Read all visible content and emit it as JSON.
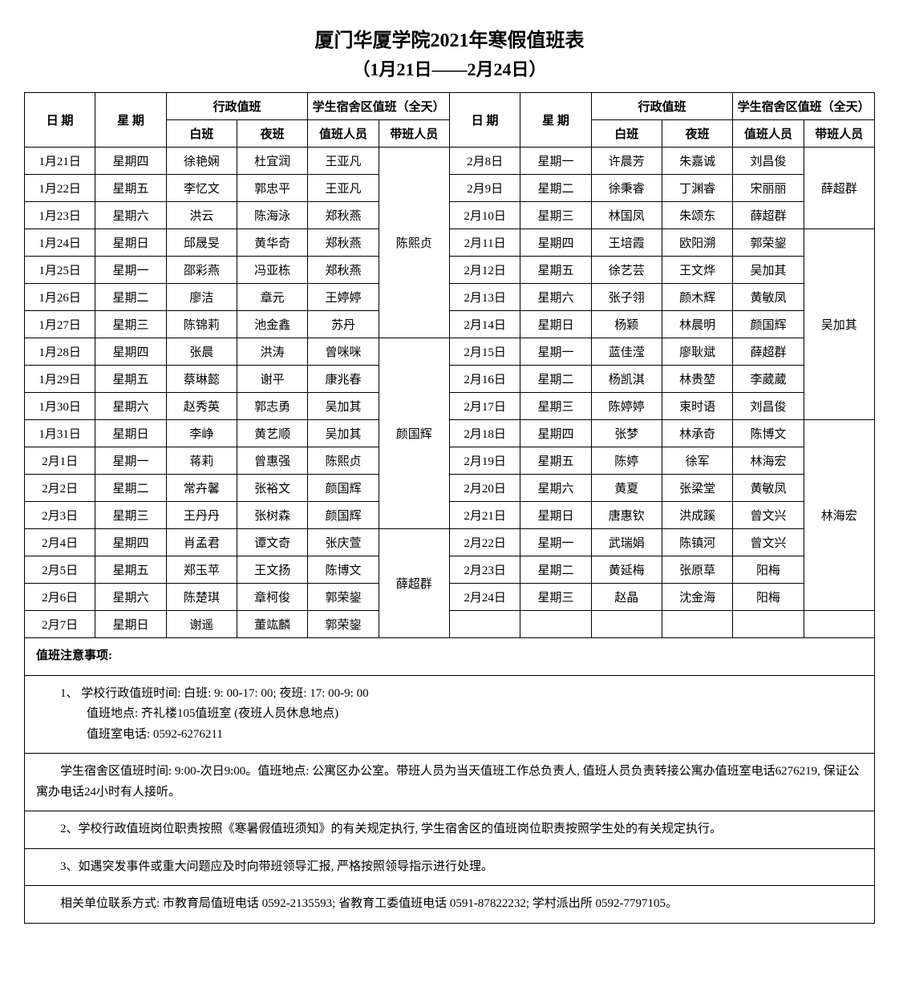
{
  "title": "厦门华厦学院2021年寒假值班表",
  "subtitle": "（1月21日——2月24日）",
  "headers": {
    "date": "日 期",
    "weekday": "星 期",
    "adminDuty": "行政值班",
    "dormDuty": "学生宿舍区值班（全天）",
    "dayShift": "白班",
    "nightShift": "夜班",
    "dutyPerson": "值班人员",
    "leadPerson": "带班人员"
  },
  "left": [
    {
      "date": "1月21日",
      "wd": "星期四",
      "d": "徐艳娴",
      "n": "杜宜润",
      "p": "王亚凡"
    },
    {
      "date": "1月22日",
      "wd": "星期五",
      "d": "李忆文",
      "n": "郭忠平",
      "p": "王亚凡"
    },
    {
      "date": "1月23日",
      "wd": "星期六",
      "d": "洪云",
      "n": "陈海泳",
      "p": "郑秋燕"
    },
    {
      "date": "1月24日",
      "wd": "星期日",
      "d": "邱晟旻",
      "n": "黄华奇",
      "p": "郑秋燕"
    },
    {
      "date": "1月25日",
      "wd": "星期一",
      "d": "邵彩燕",
      "n": "冯亚栋",
      "p": "郑秋燕"
    },
    {
      "date": "1月26日",
      "wd": "星期二",
      "d": "廖洁",
      "n": "章元",
      "p": "王婷婷"
    },
    {
      "date": "1月27日",
      "wd": "星期三",
      "d": "陈锦莉",
      "n": "池金鑫",
      "p": "苏丹"
    },
    {
      "date": "1月28日",
      "wd": "星期四",
      "d": "张晨",
      "n": "洪涛",
      "p": "曾咪咪"
    },
    {
      "date": "1月29日",
      "wd": "星期五",
      "d": "蔡琳懿",
      "n": "谢平",
      "p": "康兆春"
    },
    {
      "date": "1月30日",
      "wd": "星期六",
      "d": "赵秀英",
      "n": "郭志勇",
      "p": "吴加其"
    },
    {
      "date": "1月31日",
      "wd": "星期日",
      "d": "李峥",
      "n": "黄艺顺",
      "p": "吴加其"
    },
    {
      "date": "2月1日",
      "wd": "星期一",
      "d": "蒋莉",
      "n": "曾惠强",
      "p": "陈熙贞"
    },
    {
      "date": "2月2日",
      "wd": "星期二",
      "d": "常卉馨",
      "n": "张裕文",
      "p": "颜国辉"
    },
    {
      "date": "2月3日",
      "wd": "星期三",
      "d": "王丹丹",
      "n": "张树森",
      "p": "颜国辉"
    },
    {
      "date": "2月4日",
      "wd": "星期四",
      "d": "肖孟君",
      "n": "谭文奇",
      "p": "张庆萱"
    },
    {
      "date": "2月5日",
      "wd": "星期五",
      "d": "郑玉苹",
      "n": "王文扬",
      "p": "陈博文"
    },
    {
      "date": "2月6日",
      "wd": "星期六",
      "d": "陈楚琪",
      "n": "章柯俊",
      "p": "郭荣鋆"
    },
    {
      "date": "2月7日",
      "wd": "星期日",
      "d": "谢遥",
      "n": "董竑麟",
      "p": "郭荣鋆"
    }
  ],
  "leftLeaders": [
    {
      "name": "陈熙贞",
      "span": 7
    },
    {
      "name": "颜国辉",
      "span": 7
    },
    {
      "name": "薛超群",
      "span": 4
    }
  ],
  "right": [
    {
      "date": "2月8日",
      "wd": "星期一",
      "d": "许晨芳",
      "n": "朱嘉诚",
      "p": "刘昌俊"
    },
    {
      "date": "2月9日",
      "wd": "星期二",
      "d": "徐秉睿",
      "n": "丁渊睿",
      "p": "宋丽丽"
    },
    {
      "date": "2月10日",
      "wd": "星期三",
      "d": "林国凤",
      "n": "朱颂东",
      "p": "薛超群"
    },
    {
      "date": "2月11日",
      "wd": "星期四",
      "d": "王培霞",
      "n": "欧阳溯",
      "p": "郭荣鋆"
    },
    {
      "date": "2月12日",
      "wd": "星期五",
      "d": "徐艺芸",
      "n": "王文烨",
      "p": "吴加其"
    },
    {
      "date": "2月13日",
      "wd": "星期六",
      "d": "张子翎",
      "n": "颜木辉",
      "p": "黄敏凤"
    },
    {
      "date": "2月14日",
      "wd": "星期日",
      "d": "杨颖",
      "n": "林晨明",
      "p": "颜国辉"
    },
    {
      "date": "2月15日",
      "wd": "星期一",
      "d": "蓝佳滢",
      "n": "廖耿斌",
      "p": "薛超群"
    },
    {
      "date": "2月16日",
      "wd": "星期二",
      "d": "杨凯淇",
      "n": "林贵堃",
      "p": "李葳葳"
    },
    {
      "date": "2月17日",
      "wd": "星期三",
      "d": "陈婷婷",
      "n": "束时语",
      "p": "刘昌俊"
    },
    {
      "date": "2月18日",
      "wd": "星期四",
      "d": "张梦",
      "n": "林承奇",
      "p": "陈博文"
    },
    {
      "date": "2月19日",
      "wd": "星期五",
      "d": "陈婷",
      "n": "徐军",
      "p": "林海宏"
    },
    {
      "date": "2月20日",
      "wd": "星期六",
      "d": "黄夏",
      "n": "张梁堂",
      "p": "黄敏凤"
    },
    {
      "date": "2月21日",
      "wd": "星期日",
      "d": "唐惠钦",
      "n": "洪成蹊",
      "p": "曾文兴"
    },
    {
      "date": "2月22日",
      "wd": "星期一",
      "d": "武瑞娟",
      "n": "陈镇河",
      "p": "曾文兴"
    },
    {
      "date": "2月23日",
      "wd": "星期二",
      "d": "黄延梅",
      "n": "张原草",
      "p": "阳梅"
    },
    {
      "date": "2月24日",
      "wd": "星期三",
      "d": "赵晶",
      "n": "沈金海",
      "p": "阳梅"
    }
  ],
  "rightLeaders": [
    {
      "name": "薛超群",
      "span": 3
    },
    {
      "name": "吴加其",
      "span": 7
    },
    {
      "name": "林海宏",
      "span": 7
    }
  ],
  "notesTitle": "值班注意事项:",
  "notes": {
    "n1a": "1、 学校行政值班时间: 白班: 9: 00-17: 00; 夜班: 17: 00-9: 00",
    "n1b": "值班地点: 齐礼楼105值班室 (夜班人员休息地点)",
    "n1c": "值班室电话: 0592-6276211",
    "n2": "学生宿舍区值班时间: 9:00-次日9:00。值班地点: 公寓区办公室。带班人员为当天值班工作总负责人, 值班人员负责转接公寓办值班室电话6276219, 保证公寓办电话24小时有人接听。",
    "n3": "2、学校行政值班岗位职责按照《寒暑假值班须知》的有关规定执行, 学生宿舍区的值班岗位职责按照学生处的有关规定执行。",
    "n4": "3、如遇突发事件或重大问题应及时向带班领导汇报, 严格按照领导指示进行处理。",
    "n5": "相关单位联系方式: 市教育局值班电话 0592-2135593; 省教育工委值班电话 0591-87822232; 学村派出所 0592-7797105。"
  }
}
